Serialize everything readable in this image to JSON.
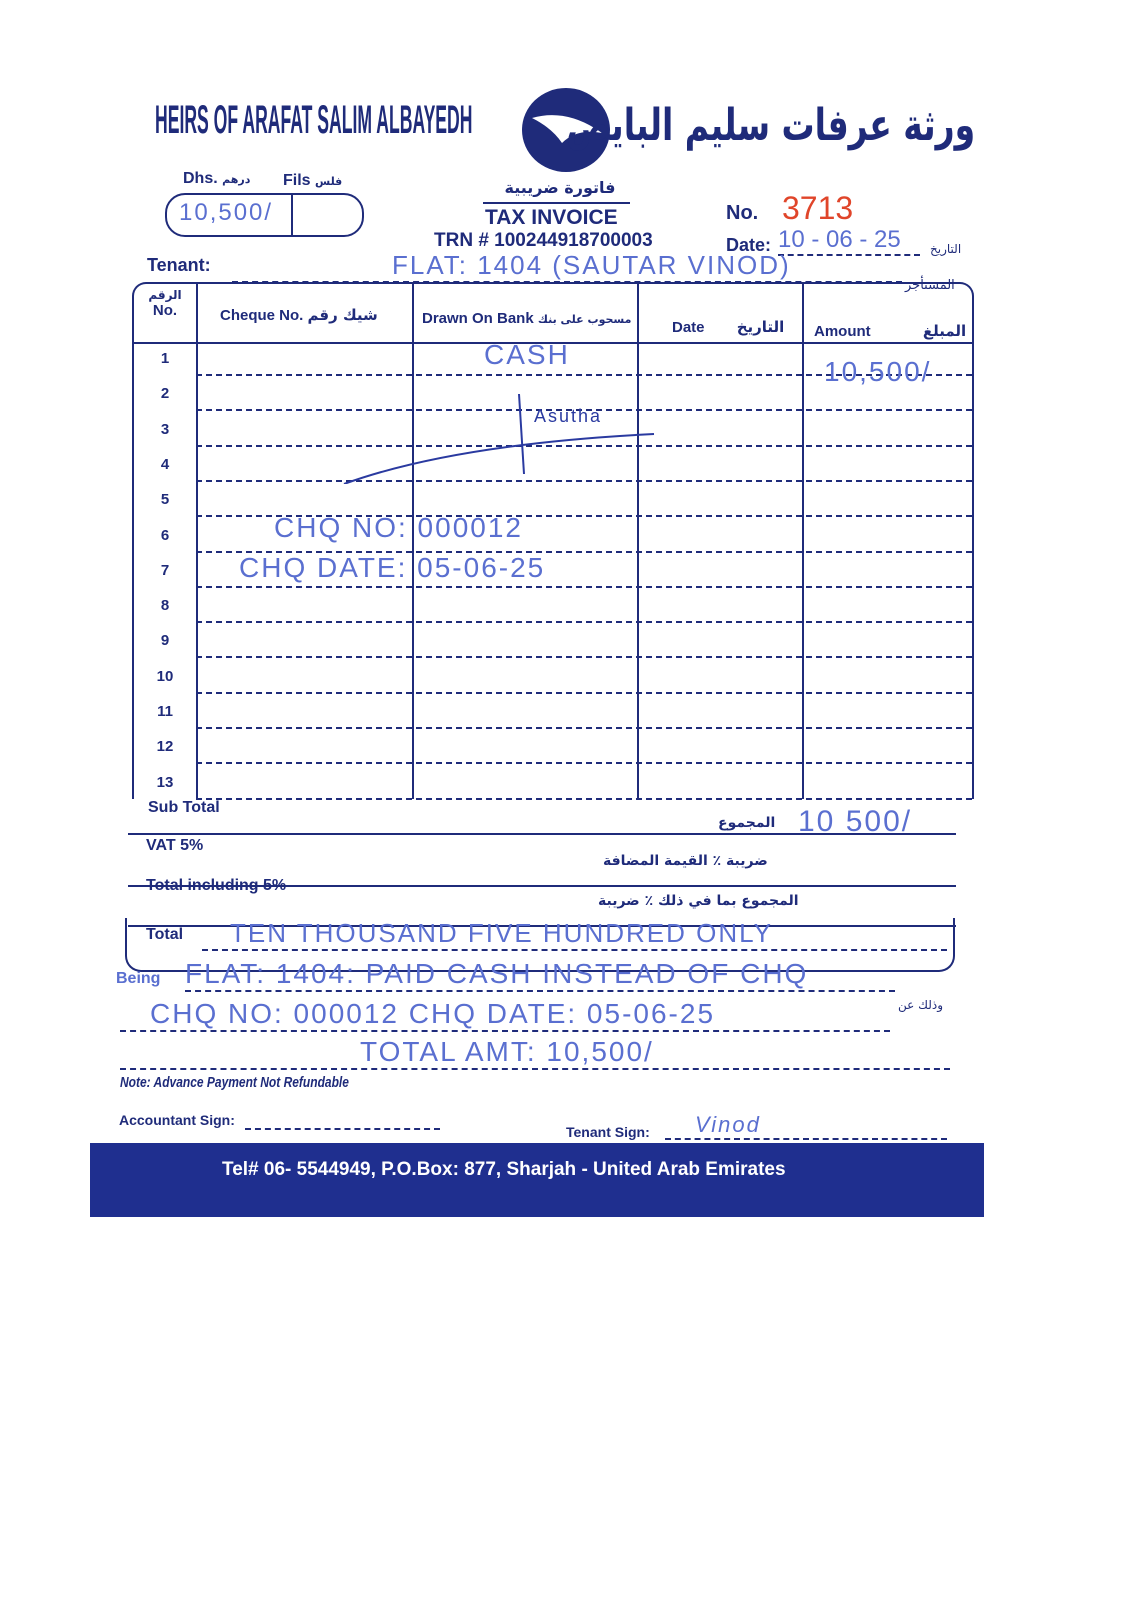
{
  "header": {
    "company_en": "HEIRS OF ARAFAT SALIM ALBAYEDH",
    "company_ar": "ورثة عرفات سليم البايض",
    "doc_title_ar": "فاتورة ضريبية",
    "doc_title_en": "TAX INVOICE",
    "trn": "TRN # 100244918700003"
  },
  "amount_box": {
    "dhs_label": "Dhs.",
    "dhs_label_ar": "درهم",
    "fils_label": "Fils",
    "fils_label_ar": "فلس",
    "dhs_value": "10,500/",
    "fils_value": ""
  },
  "invoice": {
    "no_label": "No.",
    "no_value": "3713",
    "date_label": "Date:",
    "date_label_ar": "التاريخ",
    "date_value": "10 - 06 - 25"
  },
  "tenant": {
    "label": "Tenant:",
    "label_ar": "المستأجر",
    "value": "FLAT: 1404 (SAUTAR VINOD)"
  },
  "table": {
    "headers": [
      {
        "en": "No.",
        "ar": "الرقم"
      },
      {
        "en": "Cheque No.",
        "ar": "شيك رقم"
      },
      {
        "en": "Drawn On Bank",
        "ar": "مسحوب على بنك"
      },
      {
        "en": "Date",
        "ar": "التاريخ"
      },
      {
        "en": "Amount",
        "ar": "المبلغ"
      }
    ],
    "rows": [
      "1",
      "2",
      "3",
      "4",
      "5",
      "6",
      "7",
      "8",
      "9",
      "10",
      "11",
      "12",
      "13"
    ],
    "handwritten": {
      "bank_row1": "CASH",
      "amount_row1": "10,500/",
      "cheque_no": "CHQ NO: 000012",
      "cheque_date": "CHQ DATE: 05-06-25",
      "sign_text": "Asutha"
    }
  },
  "totals": {
    "sub_total_label": "Sub Total",
    "sub_total_ar": "المجموع",
    "sub_total_value": "10 500/",
    "vat_label": "VAT 5%",
    "vat_ar": "ضريبة ٪ القيمة المضافة",
    "total_incl_label": "Total including 5%",
    "total_incl_ar": "المجموع بما في ذلك ٪ ضريبة",
    "total_label": "Total",
    "total_words": "TEN THOUSAND FIVE HUNDRED ONLY"
  },
  "being": {
    "label": "Being",
    "label_ar": "وذلك عن",
    "line1": "FLAT: 1404: PAID CASH INSTEAD OF CHQ",
    "line2": "CHQ NO: 000012 CHQ DATE: 05-06-25",
    "line3": "TOTAL AMT: 10,500/"
  },
  "note": "Note: Advance Payment Not Refundable",
  "signs": {
    "accountant_label": "Accountant Sign:",
    "tenant_label": "Tenant Sign:",
    "tenant_sig": "Vinod"
  },
  "footer": {
    "text": "Tel# 06- 5544949, P.O.Box: 877, Sharjah - United Arab Emirates",
    "bg": "#1f2f8f"
  },
  "colors": {
    "ink": "#1f2b7a",
    "handwriting": "#5a6fd0",
    "number_red": "#e0452a"
  }
}
